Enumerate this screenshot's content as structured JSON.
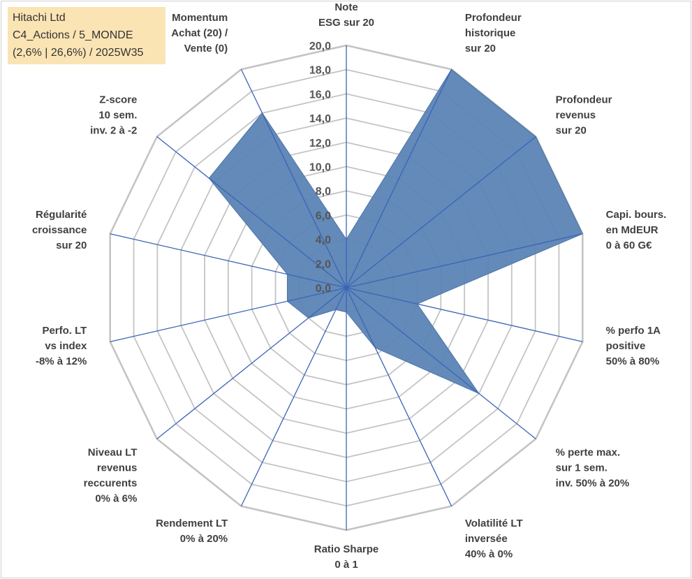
{
  "info_box": {
    "line1": "Hitachi Ltd",
    "line2": "C4_Actions / 5_MONDE",
    "line3": "(2,6% | 26,6%) / 2025W35"
  },
  "chart_data": {
    "type": "radar",
    "title": "Hitachi Ltd",
    "rmin": 0,
    "rmax": 20,
    "tick_step": 2,
    "tick_labels": [
      "0,0",
      "2,0",
      "4,0",
      "6,0",
      "8,0",
      "10,0",
      "12,0",
      "14,0",
      "16,0",
      "18,0",
      "20,0"
    ],
    "axes": [
      {
        "label": [
          "Note",
          "ESG sur 20"
        ],
        "value": 4.0
      },
      {
        "label": [
          "Profondeur",
          "historique",
          "sur 20"
        ],
        "value": 20.0
      },
      {
        "label": [
          "Profondeur",
          "revenus",
          "sur 20"
        ],
        "value": 20.0
      },
      {
        "label": [
          "Capi. bours.",
          "en MdEUR",
          "0 à 60 G€"
        ],
        "value": 20.0
      },
      {
        "label": [
          "% perfo 1A",
          "positive",
          "50% à 80%"
        ],
        "value": 6.0
      },
      {
        "label": [
          "% perte max.",
          "sur 1 sem.",
          "inv. 50% à 20%"
        ],
        "value": 14.0
      },
      {
        "label": [
          "Volatilité LT",
          "inversée",
          "40% à 0%"
        ],
        "value": 5.5
      },
      {
        "label": [
          "Ratio Sharpe",
          "0 à 1"
        ],
        "value": 2.0
      },
      {
        "label": [
          "Rendement LT",
          "0% à 20%"
        ],
        "value": 2.0
      },
      {
        "label": [
          "Niveau LT",
          "revenus",
          "reccurents",
          "0% à 6%"
        ],
        "value": 4.0
      },
      {
        "label": [
          "Perfo. LT",
          "vs index",
          "-8% à 12%"
        ],
        "value": 5.0
      },
      {
        "label": [
          "Régularité",
          "croissance",
          "sur 20"
        ],
        "value": 5.0
      },
      {
        "label": [
          "Z-score",
          "10 sem.",
          "inv. 2 à -2"
        ],
        "value": 14.5
      },
      {
        "label": [
          "Momentum",
          "Achat (20) /",
          "Vente (0)"
        ],
        "value": 16.0
      }
    ],
    "colors": {
      "fill": "#5b84b5",
      "stroke": "#4b74a8",
      "spoke": "#3b64b5",
      "grid": "#c4c4c4",
      "text": "#404040"
    },
    "grid": true,
    "legend": "none"
  }
}
